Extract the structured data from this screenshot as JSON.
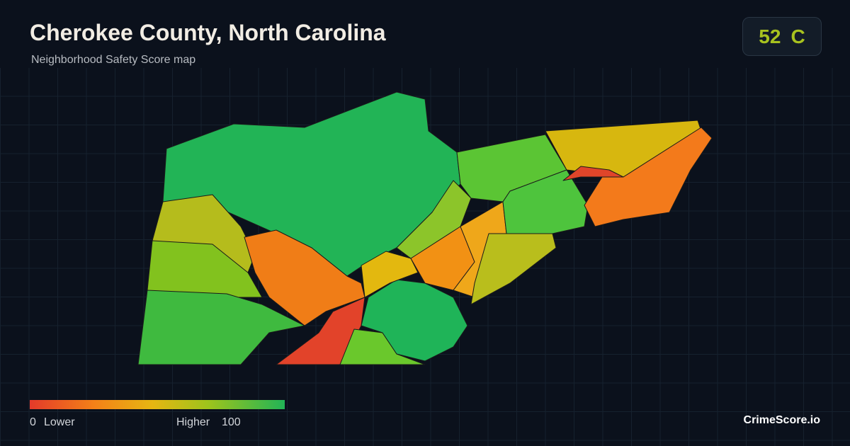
{
  "header": {
    "title": "Cherokee County, North Carolina",
    "subtitle": "Neighborhood Safety Score map"
  },
  "score": {
    "value": 52,
    "grade": "C"
  },
  "legend": {
    "min": 0,
    "min_label": "Lower",
    "max_label": "Higher",
    "max": 100
  },
  "brand": "CrimeScore.io"
}
